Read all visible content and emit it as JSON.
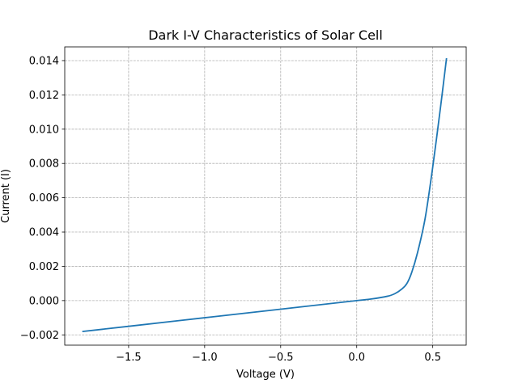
{
  "chart_data": {
    "type": "line",
    "title": "Dark I-V Characteristics of Solar Cell",
    "xlabel": "Voltage (V)",
    "ylabel": "Current (I)",
    "xlim": [
      -1.92,
      0.72
    ],
    "ylim": [
      -0.0026,
      0.0148
    ],
    "x_ticks": [
      -1.5,
      -1.0,
      -0.5,
      0.0,
      0.5
    ],
    "x_tick_labels": [
      "−1.5",
      "−1.0",
      "−0.5",
      "0.0",
      "0.5"
    ],
    "y_ticks": [
      -0.002,
      0.0,
      0.002,
      0.004,
      0.006,
      0.008,
      0.01,
      0.012,
      0.014
    ],
    "y_tick_labels": [
      "−0.002",
      "0.000",
      "0.002",
      "0.004",
      "0.006",
      "0.008",
      "0.010",
      "0.012",
      "0.014"
    ],
    "grid": true,
    "legend": "none",
    "series": [
      {
        "color": "#1f77b4",
        "x": [
          -1.8,
          -1.5,
          -1.0,
          -0.5,
          0.0,
          0.1,
          0.2,
          0.25,
          0.3,
          0.33,
          0.36,
          0.4,
          0.45,
          0.5,
          0.55,
          0.59
        ],
        "y": [
          -0.0018,
          -0.0015,
          -0.001,
          -0.0005,
          0.0,
          0.0001,
          0.00025,
          0.0004,
          0.0007,
          0.001,
          0.0016,
          0.0028,
          0.0048,
          0.0078,
          0.0112,
          0.0141
        ]
      }
    ]
  }
}
